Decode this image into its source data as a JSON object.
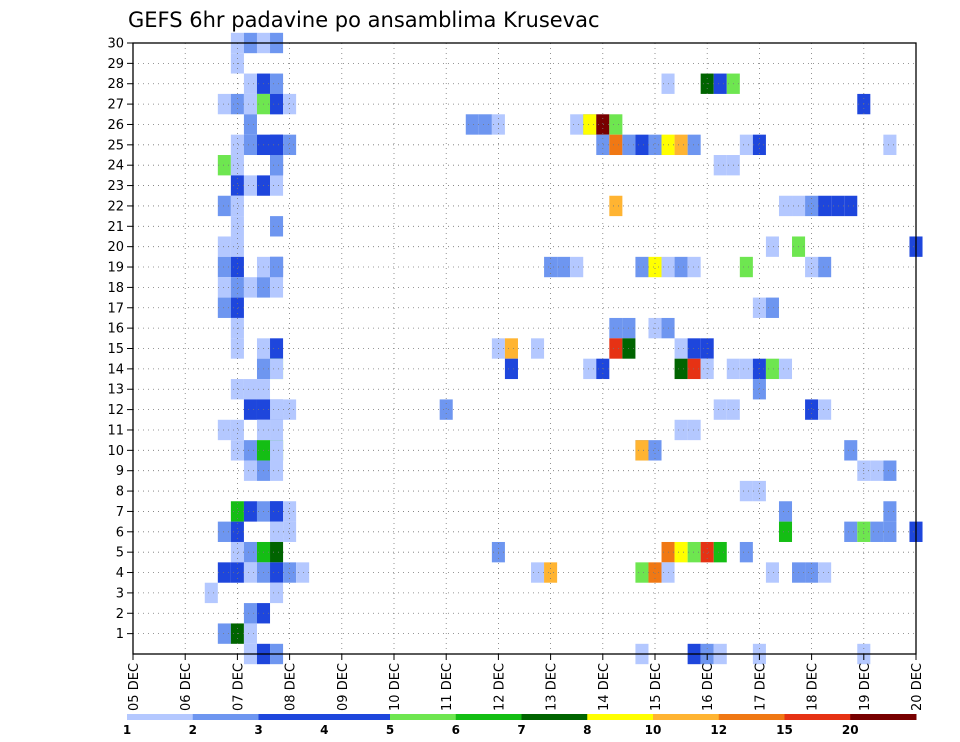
{
  "chart_data": {
    "type": "heatmap",
    "title": "GEFS 6hr padavine po ansamblima Krusevac",
    "y_labels": [
      "1",
      "2",
      "3",
      "4",
      "5",
      "6",
      "7",
      "8",
      "9",
      "10",
      "11",
      "12",
      "13",
      "14",
      "15",
      "16",
      "17",
      "18",
      "19",
      "20",
      "21",
      "22",
      "23",
      "24",
      "25",
      "26",
      "27",
      "28",
      "29",
      "30"
    ],
    "x_labels": [
      "05 DEC",
      "06 DEC",
      "07 DEC",
      "08 DEC",
      "09 DEC",
      "10 DEC",
      "11 DEC",
      "12 DEC",
      "13 DEC",
      "14 DEC",
      "15 DEC",
      "16 DEC",
      "17 DEC",
      "18 DEC",
      "19 DEC",
      "20 DEC"
    ],
    "grid": true,
    "legend": {
      "position": "bottom",
      "levels": [
        "1",
        "2",
        "3",
        "4",
        "5",
        "6",
        "7",
        "8",
        "10",
        "12",
        "15",
        "20"
      ],
      "colors": [
        "#b4c8ff",
        "#6e96f0",
        "#1e46dc",
        "#1e46dc",
        "#6ee650",
        "#14be14",
        "#006400",
        "#ffff00",
        "#ffb432",
        "#f07814",
        "#e63214",
        "#780000"
      ]
    },
    "cells": [
      [
        30,
        "07 DEC",
        0,
        1
      ],
      [
        30,
        "07 DEC",
        0.25,
        2
      ],
      [
        30,
        "07 DEC",
        0.5,
        1
      ],
      [
        30,
        "08 DEC",
        -0.25,
        2
      ],
      [
        29,
        "07 DEC",
        0,
        1
      ],
      [
        28,
        "07 DEC",
        0.25,
        1
      ],
      [
        28,
        "07 DEC",
        0.5,
        3
      ],
      [
        28,
        "07 DEC",
        0.75,
        2
      ],
      [
        28,
        "15 DEC",
        0.25,
        1
      ],
      [
        28,
        "16 DEC",
        0,
        7
      ],
      [
        28,
        "16 DEC",
        0.25,
        3
      ],
      [
        28,
        "16 DEC",
        0.5,
        5
      ],
      [
        27,
        "07 DEC",
        -0.25,
        1
      ],
      [
        27,
        "07 DEC",
        0,
        2
      ],
      [
        27,
        "07 DEC",
        0.25,
        1
      ],
      [
        27,
        "07 DEC",
        0.5,
        5
      ],
      [
        27,
        "07 DEC",
        0.75,
        2
      ],
      [
        27,
        "08 DEC",
        -0.25,
        3
      ],
      [
        27,
        "08 DEC",
        0,
        1
      ],
      [
        27,
        "19 DEC",
        0,
        3
      ],
      [
        26,
        "07 DEC",
        0.25,
        2
      ],
      [
        26,
        "11 DEC",
        0.5,
        2
      ],
      [
        26,
        "11 DEC",
        0.75,
        2
      ],
      [
        26,
        "12 DEC",
        0,
        1
      ],
      [
        26,
        "13 DEC",
        0.5,
        1
      ],
      [
        26,
        "13 DEC",
        0.75,
        2
      ],
      [
        26,
        "14 DEC",
        -0.25,
        8
      ],
      [
        26,
        "14 DEC",
        0,
        20
      ],
      [
        26,
        "14 DEC",
        0.25,
        5
      ],
      [
        25,
        "07 DEC",
        0,
        1
      ],
      [
        25,
        "07 DEC",
        0.25,
        2
      ],
      [
        25,
        "07 DEC",
        0.5,
        3
      ],
      [
        25,
        "07 DEC",
        0.75,
        3
      ],
      [
        25,
        "08 DEC",
        -0.25,
        3
      ],
      [
        25,
        "08 DEC",
        0,
        2
      ],
      [
        25,
        "14 DEC",
        0,
        2
      ],
      [
        25,
        "14 DEC",
        0.25,
        12
      ],
      [
        25,
        "14 DEC",
        0.5,
        2
      ],
      [
        25,
        "15 DEC",
        -0.25,
        3
      ],
      [
        25,
        "15 DEC",
        0,
        2
      ],
      [
        25,
        "15 DEC",
        0.25,
        8
      ],
      [
        25,
        "15 DEC",
        0.5,
        10
      ],
      [
        25,
        "15 DEC",
        0.75,
        2
      ],
      [
        25,
        "16 DEC",
        0.75,
        1
      ],
      [
        25,
        "17 DEC",
        0,
        3
      ],
      [
        25,
        "19 DEC",
        0.5,
        1
      ],
      [
        24,
        "07 DEC",
        -0.25,
        5
      ],
      [
        24,
        "07 DEC",
        0,
        1
      ],
      [
        24,
        "07 DEC",
        0.75,
        3
      ],
      [
        24,
        "08 DEC",
        -0.25,
        2
      ],
      [
        24,
        "16 DEC",
        0.25,
        1
      ],
      [
        24,
        "16 DEC",
        0.5,
        1
      ],
      [
        23,
        "07 DEC",
        0,
        3
      ],
      [
        23,
        "07 DEC",
        0.25,
        1
      ],
      [
        23,
        "07 DEC",
        0.5,
        3
      ],
      [
        23,
        "07 DEC",
        0.75,
        1
      ],
      [
        22,
        "07 DEC",
        -0.25,
        2
      ],
      [
        22,
        "07 DEC",
        0,
        1
      ],
      [
        22,
        "14 DEC",
        0.25,
        10
      ],
      [
        22,
        "17 DEC",
        0.5,
        1
      ],
      [
        22,
        "17 DEC",
        0.75,
        1
      ],
      [
        22,
        "18 DEC",
        0,
        2
      ],
      [
        22,
        "18 DEC",
        0.25,
        3
      ],
      [
        22,
        "18 DEC",
        0.5,
        3
      ],
      [
        22,
        "18 DEC",
        0.75,
        3
      ],
      [
        21,
        "07 DEC",
        0,
        1
      ],
      [
        21,
        "07 DEC",
        0.75,
        2
      ],
      [
        20,
        "07 DEC",
        -0.25,
        1
      ],
      [
        20,
        "07 DEC",
        0,
        1
      ],
      [
        20,
        "17 DEC",
        0.25,
        1
      ],
      [
        20,
        "17 DEC",
        0.75,
        5
      ],
      [
        20,
        "20 DEC",
        0,
        3
      ],
      [
        19,
        "07 DEC",
        -0.25,
        2
      ],
      [
        19,
        "07 DEC",
        0,
        3
      ],
      [
        19,
        "07 DEC",
        0.5,
        1
      ],
      [
        19,
        "07 DEC",
        0.75,
        3
      ],
      [
        19,
        "08 DEC",
        -0.25,
        2
      ],
      [
        19,
        "13 DEC",
        0,
        2
      ],
      [
        19,
        "13 DEC",
        0.25,
        2
      ],
      [
        19,
        "13 DEC",
        0.5,
        1
      ],
      [
        19,
        "15 DEC",
        -0.25,
        2
      ],
      [
        19,
        "15 DEC",
        0,
        8
      ],
      [
        19,
        "15 DEC",
        0.25,
        1
      ],
      [
        19,
        "15 DEC",
        0.5,
        2
      ],
      [
        19,
        "15 DEC",
        0.75,
        1
      ],
      [
        19,
        "16 DEC",
        0.75,
        5
      ],
      [
        19,
        "18 DEC",
        0,
        1
      ],
      [
        19,
        "18 DEC",
        0.25,
        2
      ],
      [
        18,
        "07 DEC",
        -0.25,
        1
      ],
      [
        18,
        "07 DEC",
        0,
        2
      ],
      [
        18,
        "07 DEC",
        0.25,
        1
      ],
      [
        18,
        "07 DEC",
        0.5,
        2
      ],
      [
        18,
        "07 DEC",
        0.75,
        1
      ],
      [
        17,
        "07 DEC",
        -0.25,
        2
      ],
      [
        17,
        "07 DEC",
        0,
        3
      ],
      [
        17,
        "17 DEC",
        0,
        1
      ],
      [
        17,
        "17 DEC",
        0.25,
        2
      ],
      [
        16,
        "07 DEC",
        0,
        1
      ],
      [
        16,
        "14 DEC",
        0.25,
        2
      ],
      [
        16,
        "14 DEC",
        0.5,
        2
      ],
      [
        16,
        "15 DEC",
        0,
        1
      ],
      [
        16,
        "15 DEC",
        0.25,
        2
      ],
      [
        15,
        "07 DEC",
        0,
        1
      ],
      [
        15,
        "07 DEC",
        0.5,
        1
      ],
      [
        15,
        "07 DEC",
        0.75,
        3
      ],
      [
        15,
        "12 DEC",
        0,
        1
      ],
      [
        15,
        "12 DEC",
        0.25,
        10
      ],
      [
        15,
        "12 DEC",
        0.75,
        1
      ],
      [
        15,
        "14 DEC",
        0.25,
        15
      ],
      [
        15,
        "14 DEC",
        0.5,
        7
      ],
      [
        15,
        "15 DEC",
        0.5,
        1
      ],
      [
        15,
        "15 DEC",
        0.75,
        3
      ],
      [
        15,
        "16 DEC",
        0,
        3
      ],
      [
        14,
        "07 DEC",
        0.5,
        2
      ],
      [
        14,
        "07 DEC",
        0.75,
        5
      ],
      [
        14,
        "08 DEC",
        -0.25,
        1
      ],
      [
        14,
        "12 DEC",
        0.25,
        3
      ],
      [
        14,
        "13 DEC",
        0.75,
        1
      ],
      [
        14,
        "14 DEC",
        0,
        3
      ],
      [
        14,
        "15 DEC",
        0.5,
        7
      ],
      [
        14,
        "15 DEC",
        0.75,
        15
      ],
      [
        14,
        "16 DEC",
        0,
        1
      ],
      [
        14,
        "16 DEC",
        0.5,
        1
      ],
      [
        14,
        "16 DEC",
        0.75,
        1
      ],
      [
        14,
        "17 DEC",
        0,
        3
      ],
      [
        14,
        "17 DEC",
        0.25,
        5
      ],
      [
        14,
        "17 DEC",
        0.5,
        1
      ],
      [
        13,
        "07 DEC",
        0,
        1
      ],
      [
        13,
        "07 DEC",
        0.25,
        1
      ],
      [
        13,
        "07 DEC",
        0.5,
        1
      ],
      [
        13,
        "17 DEC",
        0,
        2
      ],
      [
        12,
        "07 DEC",
        0.25,
        3
      ],
      [
        12,
        "07 DEC",
        0.5,
        3
      ],
      [
        12,
        "07 DEC",
        0.75,
        3
      ],
      [
        12,
        "08 DEC",
        -0.25,
        1
      ],
      [
        12,
        "08 DEC",
        0,
        1
      ],
      [
        12,
        "11 DEC",
        0,
        2
      ],
      [
        12,
        "16 DEC",
        0.25,
        1
      ],
      [
        12,
        "16 DEC",
        0.5,
        1
      ],
      [
        12,
        "18 DEC",
        0,
        3
      ],
      [
        12,
        "18 DEC",
        0.25,
        1
      ],
      [
        11,
        "07 DEC",
        -0.25,
        1
      ],
      [
        11,
        "07 DEC",
        0,
        1
      ],
      [
        11,
        "07 DEC",
        0.5,
        1
      ],
      [
        11,
        "07 DEC",
        0.75,
        1
      ],
      [
        11,
        "15 DEC",
        0.5,
        1
      ],
      [
        11,
        "15 DEC",
        0.75,
        1
      ],
      [
        10,
        "07 DEC",
        0,
        1
      ],
      [
        10,
        "07 DEC",
        0.25,
        2
      ],
      [
        10,
        "07 DEC",
        0.5,
        6
      ],
      [
        10,
        "07 DEC",
        0.75,
        6
      ],
      [
        10,
        "08 DEC",
        -0.25,
        1
      ],
      [
        10,
        "14 DEC",
        0.75,
        2
      ],
      [
        10,
        "15 DEC",
        -0.25,
        10
      ],
      [
        10,
        "15 DEC",
        0,
        2
      ],
      [
        10,
        "18 DEC",
        0.75,
        2
      ],
      [
        9,
        "07 DEC",
        0.25,
        1
      ],
      [
        9,
        "07 DEC",
        0.5,
        2
      ],
      [
        9,
        "07 DEC",
        0.75,
        1
      ],
      [
        9,
        "19 DEC",
        0,
        1
      ],
      [
        9,
        "19 DEC",
        0.25,
        1
      ],
      [
        9,
        "19 DEC",
        0.5,
        2
      ],
      [
        8,
        "17 DEC",
        -0.25,
        1
      ],
      [
        8,
        "17 DEC",
        0,
        1
      ],
      [
        7,
        "07 DEC",
        0,
        6
      ],
      [
        7,
        "07 DEC",
        0.25,
        3
      ],
      [
        7,
        "07 DEC",
        0.5,
        2
      ],
      [
        7,
        "07 DEC",
        0.75,
        3
      ],
      [
        7,
        "08 DEC",
        -0.25,
        3
      ],
      [
        7,
        "08 DEC",
        0,
        1
      ],
      [
        7,
        "17 DEC",
        0.5,
        2
      ],
      [
        7,
        "19 DEC",
        0.5,
        2
      ],
      [
        6,
        "07 DEC",
        -0.25,
        2
      ],
      [
        6,
        "07 DEC",
        0,
        3
      ],
      [
        6,
        "08 DEC",
        -0.25,
        1
      ],
      [
        6,
        "08 DEC",
        0,
        1
      ],
      [
        6,
        "17 DEC",
        0.5,
        6
      ],
      [
        6,
        "18 DEC",
        0.75,
        2
      ],
      [
        6,
        "19 DEC",
        0,
        5
      ],
      [
        6,
        "19 DEC",
        0.25,
        2
      ],
      [
        6,
        "19 DEC",
        0.5,
        2
      ],
      [
        6,
        "20 DEC",
        0,
        3
      ],
      [
        5,
        "07 DEC",
        0,
        1
      ],
      [
        5,
        "07 DEC",
        0.25,
        2
      ],
      [
        5,
        "07 DEC",
        0.5,
        6
      ],
      [
        5,
        "07 DEC",
        0.75,
        7
      ],
      [
        5,
        "12 DEC",
        0,
        2
      ],
      [
        5,
        "15 DEC",
        0.25,
        12
      ],
      [
        5,
        "15 DEC",
        0.5,
        8
      ],
      [
        5,
        "15 DEC",
        0.75,
        5
      ],
      [
        5,
        "16 DEC",
        0,
        15
      ],
      [
        5,
        "16 DEC",
        0.25,
        6
      ],
      [
        5,
        "16 DEC",
        0.75,
        2
      ],
      [
        4,
        "07 DEC",
        -0.25,
        3
      ],
      [
        4,
        "07 DEC",
        0,
        3
      ],
      [
        4,
        "07 DEC",
        0.25,
        1
      ],
      [
        4,
        "07 DEC",
        0.5,
        2
      ],
      [
        4,
        "07 DEC",
        0.75,
        3
      ],
      [
        4,
        "08 DEC",
        0,
        2
      ],
      [
        4,
        "08 DEC",
        0.25,
        1
      ],
      [
        4,
        "12 DEC",
        0.75,
        1
      ],
      [
        4,
        "13 DEC",
        0,
        10
      ],
      [
        4,
        "14 DEC",
        0.75,
        5
      ],
      [
        4,
        "15 DEC",
        0,
        12
      ],
      [
        4,
        "15 DEC",
        0.25,
        1
      ],
      [
        4,
        "17 DEC",
        0.25,
        1
      ],
      [
        4,
        "17 DEC",
        0.75,
        2
      ],
      [
        4,
        "18 DEC",
        0,
        2
      ],
      [
        4,
        "18 DEC",
        0.25,
        1
      ],
      [
        3,
        "07 DEC",
        -0.5,
        1
      ],
      [
        3,
        "07 DEC",
        0.75,
        1
      ],
      [
        2,
        "07 DEC",
        0.25,
        2
      ],
      [
        2,
        "07 DEC",
        0.5,
        3
      ],
      [
        1,
        "07 DEC",
        -0.25,
        2
      ],
      [
        1,
        "07 DEC",
        0,
        7
      ],
      [
        1,
        "07 DEC",
        0.25,
        1
      ],
      [
        0,
        "07 DEC",
        0.25,
        1
      ],
      [
        0,
        "07 DEC",
        0.5,
        3
      ],
      [
        0,
        "07 DEC",
        0.75,
        2
      ],
      [
        0,
        "15 DEC",
        -0.25,
        1
      ],
      [
        0,
        "16 DEC",
        -0.25,
        3
      ],
      [
        0,
        "16 DEC",
        0,
        2
      ],
      [
        0,
        "16 DEC",
        0.25,
        1
      ],
      [
        0,
        "17 DEC",
        0,
        1
      ],
      [
        0,
        "19 DEC",
        0,
        1
      ]
    ]
  }
}
